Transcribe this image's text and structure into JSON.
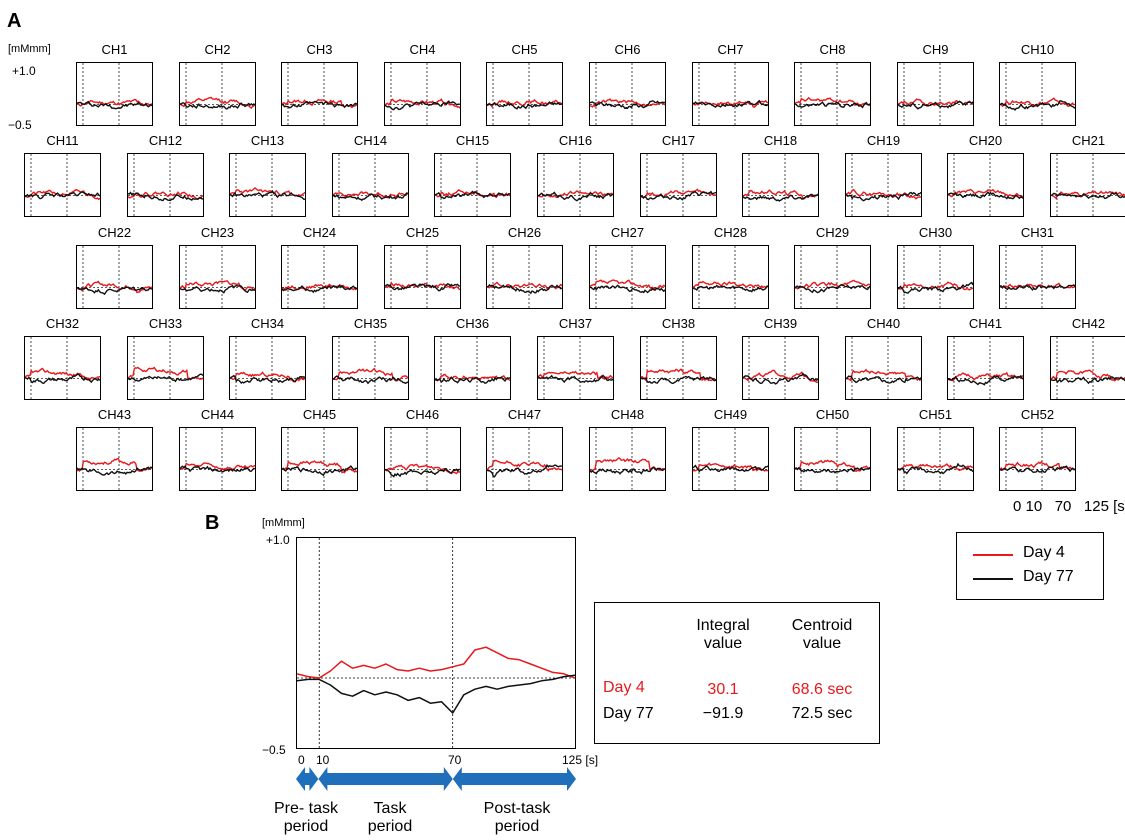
{
  "panel_a": {
    "label": "A",
    "unit": "[mMmm]",
    "ymax_label": "+1.0",
    "ymin_label": "−0.5",
    "xticks_label": "0 10   70   125 [s]"
  },
  "panel_b": {
    "label": "B",
    "unit": "[mMmm]",
    "ymax_label": "+1.0",
    "ymin_label": "−0.5",
    "xtick_0": "0",
    "xtick_10": "10",
    "xtick_70": "70",
    "xtick_125": "125 [s]",
    "periods": {
      "pre": [
        "Pre- task",
        "period"
      ],
      "task": [
        "Task",
        "period"
      ],
      "post": [
        "Post-task",
        "period"
      ]
    }
  },
  "legend": {
    "day4": "Day 4",
    "day77": "Day 77"
  },
  "summary_table": {
    "col1": [
      "Integral",
      "value"
    ],
    "col2": [
      "Centroid",
      "value"
    ],
    "rows": [
      {
        "label": "Day 4",
        "integral": "30.1",
        "centroid": "68.6 sec"
      },
      {
        "label": "Day 77",
        "integral": "−91.9",
        "centroid": "72.5 sec"
      }
    ]
  },
  "colors": {
    "day4": "#e8181c",
    "day77": "#111111",
    "arrow": "#1f6fba"
  },
  "chart_data": {
    "type": "line",
    "x_axis": {
      "label": "[s]",
      "ticks": [
        0,
        10,
        70,
        125
      ],
      "range": [
        0,
        125
      ]
    },
    "y_axis": {
      "label": "[mMmm]",
      "range": [
        -0.5,
        1.0
      ]
    },
    "markers_x": [
      10,
      70
    ],
    "series_names": [
      "Day 4",
      "Day 77"
    ],
    "channels": [
      {
        "name": "CH1"
      },
      {
        "name": "CH2"
      },
      {
        "name": "CH3"
      },
      {
        "name": "CH4"
      },
      {
        "name": "CH5"
      },
      {
        "name": "CH6"
      },
      {
        "name": "CH7"
      },
      {
        "name": "CH8"
      },
      {
        "name": "CH9"
      },
      {
        "name": "CH10"
      },
      {
        "name": "CH11"
      },
      {
        "name": "CH12"
      },
      {
        "name": "CH13"
      },
      {
        "name": "CH14"
      },
      {
        "name": "CH15"
      },
      {
        "name": "CH16"
      },
      {
        "name": "CH17"
      },
      {
        "name": "CH18"
      },
      {
        "name": "CH19"
      },
      {
        "name": "CH20"
      },
      {
        "name": "CH21"
      },
      {
        "name": "CH22"
      },
      {
        "name": "CH23"
      },
      {
        "name": "CH24"
      },
      {
        "name": "CH25"
      },
      {
        "name": "CH26"
      },
      {
        "name": "CH27"
      },
      {
        "name": "CH28"
      },
      {
        "name": "CH29"
      },
      {
        "name": "CH30"
      },
      {
        "name": "CH31"
      },
      {
        "name": "CH32"
      },
      {
        "name": "CH33"
      },
      {
        "name": "CH34"
      },
      {
        "name": "CH35"
      },
      {
        "name": "CH36"
      },
      {
        "name": "CH37"
      },
      {
        "name": "CH38"
      },
      {
        "name": "CH39"
      },
      {
        "name": "CH40"
      },
      {
        "name": "CH41"
      },
      {
        "name": "CH42"
      },
      {
        "name": "CH43"
      },
      {
        "name": "CH44"
      },
      {
        "name": "CH45"
      },
      {
        "name": "CH46"
      },
      {
        "name": "CH47"
      },
      {
        "name": "CH48"
      },
      {
        "name": "CH49"
      },
      {
        "name": "CH50"
      },
      {
        "name": "CH51"
      },
      {
        "name": "CH52"
      }
    ],
    "highlight_channel": {
      "x": [
        0,
        5,
        10,
        15,
        20,
        25,
        30,
        35,
        40,
        45,
        50,
        55,
        60,
        65,
        70,
        75,
        80,
        85,
        90,
        95,
        100,
        105,
        110,
        115,
        120,
        125
      ],
      "series": [
        {
          "name": "Day 4",
          "values": [
            0.03,
            0.01,
            0.0,
            0.05,
            0.12,
            0.07,
            0.09,
            0.07,
            0.1,
            0.06,
            0.05,
            0.07,
            0.05,
            0.06,
            0.08,
            0.1,
            0.2,
            0.22,
            0.18,
            0.14,
            0.13,
            0.1,
            0.07,
            0.04,
            0.03,
            0.0
          ]
        },
        {
          "name": "Day 77",
          "values": [
            -0.02,
            -0.01,
            -0.01,
            -0.05,
            -0.11,
            -0.13,
            -0.09,
            -0.12,
            -0.1,
            -0.12,
            -0.16,
            -0.14,
            -0.18,
            -0.17,
            -0.25,
            -0.12,
            -0.08,
            -0.06,
            -0.08,
            -0.06,
            -0.05,
            -0.04,
            -0.02,
            -0.01,
            0.01,
            0.02
          ]
        }
      ]
    }
  }
}
